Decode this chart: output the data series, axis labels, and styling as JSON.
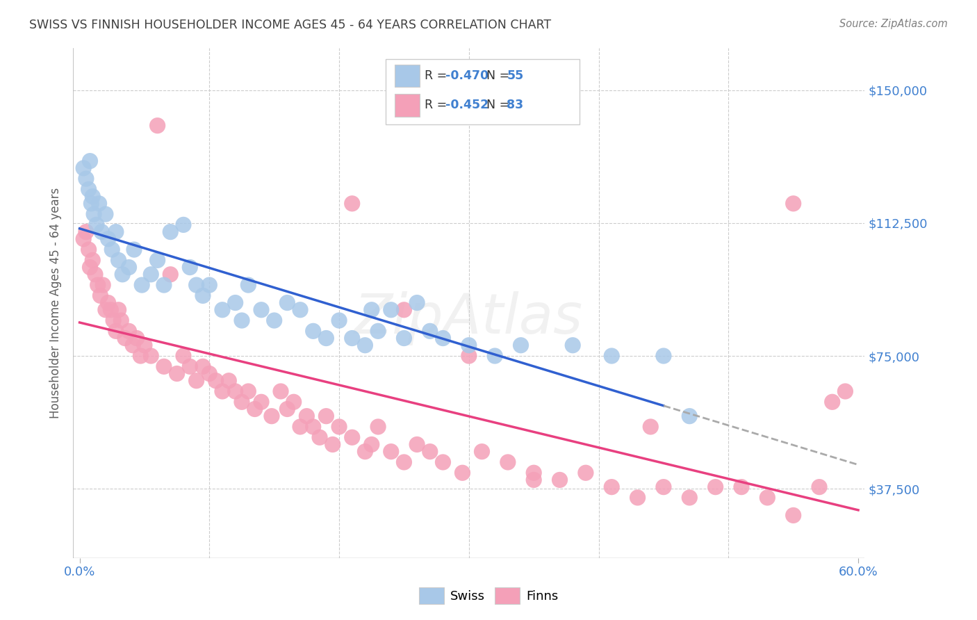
{
  "title": "SWISS VS FINNISH HOUSEHOLDER INCOME AGES 45 - 64 YEARS CORRELATION CHART",
  "source": "Source: ZipAtlas.com",
  "ylabel": "Householder Income Ages 45 - 64 years",
  "xlim": [
    -0.005,
    0.605
  ],
  "ylim": [
    18000,
    162000
  ],
  "yticks": [
    37500,
    75000,
    112500,
    150000
  ],
  "ytick_labels": [
    "$37,500",
    "$75,000",
    "$112,500",
    "$150,000"
  ],
  "xtick_positions": [
    0.0,
    0.6
  ],
  "xtick_labels": [
    "0.0%",
    "60.0%"
  ],
  "swiss_color": "#a8c8e8",
  "finns_color": "#f4a0b8",
  "swiss_line_color": "#3060d0",
  "finns_line_color": "#e84080",
  "swiss_R": -0.47,
  "swiss_N": 55,
  "finns_R": -0.452,
  "finns_N": 83,
  "title_color": "#404040",
  "axis_label_color": "#606060",
  "tick_color_y": "#4080d0",
  "background_color": "#ffffff",
  "grid_color": "#cccccc",
  "watermark": "ZipAtlas",
  "swiss_x": [
    0.003,
    0.005,
    0.007,
    0.008,
    0.009,
    0.01,
    0.011,
    0.013,
    0.015,
    0.017,
    0.02,
    0.022,
    0.025,
    0.028,
    0.03,
    0.033,
    0.038,
    0.042,
    0.048,
    0.055,
    0.06,
    0.065,
    0.07,
    0.08,
    0.085,
    0.09,
    0.095,
    0.1,
    0.11,
    0.12,
    0.125,
    0.13,
    0.14,
    0.15,
    0.16,
    0.17,
    0.18,
    0.19,
    0.2,
    0.21,
    0.22,
    0.225,
    0.23,
    0.24,
    0.25,
    0.26,
    0.27,
    0.28,
    0.3,
    0.32,
    0.34,
    0.38,
    0.41,
    0.45,
    0.47
  ],
  "swiss_y": [
    128000,
    125000,
    122000,
    130000,
    118000,
    120000,
    115000,
    112000,
    118000,
    110000,
    115000,
    108000,
    105000,
    110000,
    102000,
    98000,
    100000,
    105000,
    95000,
    98000,
    102000,
    95000,
    110000,
    112000,
    100000,
    95000,
    92000,
    95000,
    88000,
    90000,
    85000,
    95000,
    88000,
    85000,
    90000,
    88000,
    82000,
    80000,
    85000,
    80000,
    78000,
    88000,
    82000,
    88000,
    80000,
    90000,
    82000,
    80000,
    78000,
    75000,
    78000,
    78000,
    75000,
    75000,
    58000
  ],
  "finns_x": [
    0.003,
    0.005,
    0.007,
    0.008,
    0.01,
    0.012,
    0.014,
    0.016,
    0.018,
    0.02,
    0.022,
    0.024,
    0.026,
    0.028,
    0.03,
    0.032,
    0.035,
    0.038,
    0.041,
    0.044,
    0.047,
    0.05,
    0.055,
    0.06,
    0.065,
    0.07,
    0.075,
    0.08,
    0.085,
    0.09,
    0.095,
    0.1,
    0.105,
    0.11,
    0.115,
    0.12,
    0.125,
    0.13,
    0.135,
    0.14,
    0.148,
    0.155,
    0.16,
    0.165,
    0.17,
    0.175,
    0.18,
    0.185,
    0.19,
    0.195,
    0.2,
    0.21,
    0.22,
    0.225,
    0.23,
    0.24,
    0.25,
    0.26,
    0.27,
    0.28,
    0.295,
    0.31,
    0.33,
    0.35,
    0.37,
    0.39,
    0.41,
    0.43,
    0.45,
    0.47,
    0.49,
    0.51,
    0.53,
    0.55,
    0.57,
    0.59,
    0.21,
    0.25,
    0.3,
    0.35,
    0.44,
    0.55,
    0.58
  ],
  "finns_y": [
    108000,
    110000,
    105000,
    100000,
    102000,
    98000,
    95000,
    92000,
    95000,
    88000,
    90000,
    88000,
    85000,
    82000,
    88000,
    85000,
    80000,
    82000,
    78000,
    80000,
    75000,
    78000,
    75000,
    140000,
    72000,
    98000,
    70000,
    75000,
    72000,
    68000,
    72000,
    70000,
    68000,
    65000,
    68000,
    65000,
    62000,
    65000,
    60000,
    62000,
    58000,
    65000,
    60000,
    62000,
    55000,
    58000,
    55000,
    52000,
    58000,
    50000,
    55000,
    52000,
    48000,
    50000,
    55000,
    48000,
    45000,
    50000,
    48000,
    45000,
    42000,
    48000,
    45000,
    42000,
    40000,
    42000,
    38000,
    35000,
    38000,
    35000,
    38000,
    38000,
    35000,
    30000,
    38000,
    65000,
    118000,
    88000,
    75000,
    40000,
    55000,
    118000,
    62000
  ]
}
